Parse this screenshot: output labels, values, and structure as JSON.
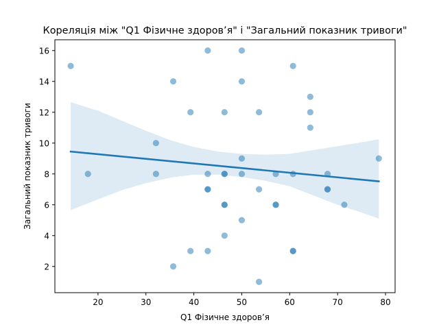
{
  "chart_data": {
    "type": "scatter",
    "title": "Кореляція між \"Q1 Фізичне здоров’я\" і \"Загальний показник тривоги\"",
    "xlabel": "Q1 Фізичне здоров’я",
    "ylabel": "Загальний показник тривоги",
    "xlim": [
      11,
      82
    ],
    "ylim": [
      0.3,
      16.7
    ],
    "xticks": [
      20,
      30,
      40,
      50,
      60,
      70,
      80
    ],
    "yticks": [
      2,
      4,
      6,
      8,
      10,
      12,
      14,
      16
    ],
    "grid": false,
    "colors": {
      "points": "#1f77b4",
      "line": "#1f77b4",
      "band": "#1f77b4"
    },
    "points": [
      {
        "x": 14.3,
        "y": 15
      },
      {
        "x": 17.9,
        "y": 8
      },
      {
        "x": 32.1,
        "y": 10
      },
      {
        "x": 32.1,
        "y": 8
      },
      {
        "x": 35.7,
        "y": 14
      },
      {
        "x": 35.7,
        "y": 2
      },
      {
        "x": 39.3,
        "y": 12
      },
      {
        "x": 39.3,
        "y": 3
      },
      {
        "x": 42.9,
        "y": 16
      },
      {
        "x": 42.9,
        "y": 8
      },
      {
        "x": 42.9,
        "y": 7
      },
      {
        "x": 42.9,
        "y": 7
      },
      {
        "x": 42.9,
        "y": 3
      },
      {
        "x": 46.4,
        "y": 12
      },
      {
        "x": 46.4,
        "y": 8
      },
      {
        "x": 46.4,
        "y": 8
      },
      {
        "x": 46.4,
        "y": 6
      },
      {
        "x": 46.4,
        "y": 6
      },
      {
        "x": 46.4,
        "y": 4
      },
      {
        "x": 50.0,
        "y": 16
      },
      {
        "x": 50.0,
        "y": 14
      },
      {
        "x": 50.0,
        "y": 9
      },
      {
        "x": 50.0,
        "y": 8
      },
      {
        "x": 50.0,
        "y": 5
      },
      {
        "x": 53.6,
        "y": 12
      },
      {
        "x": 53.6,
        "y": 7
      },
      {
        "x": 53.6,
        "y": 1
      },
      {
        "x": 57.1,
        "y": 8
      },
      {
        "x": 57.1,
        "y": 6
      },
      {
        "x": 57.1,
        "y": 6
      },
      {
        "x": 60.7,
        "y": 15
      },
      {
        "x": 60.7,
        "y": 8
      },
      {
        "x": 60.7,
        "y": 3
      },
      {
        "x": 60.7,
        "y": 3
      },
      {
        "x": 64.3,
        "y": 13
      },
      {
        "x": 64.3,
        "y": 12
      },
      {
        "x": 64.3,
        "y": 11
      },
      {
        "x": 67.9,
        "y": 8
      },
      {
        "x": 67.9,
        "y": 7
      },
      {
        "x": 67.9,
        "y": 7
      },
      {
        "x": 71.4,
        "y": 6
      },
      {
        "x": 78.6,
        "y": 9
      }
    ],
    "regression": {
      "x": [
        14.3,
        78.6
      ],
      "y": [
        9.45,
        7.52
      ]
    },
    "confidence_band": [
      {
        "x": 14.3,
        "lower": 5.65,
        "upper": 12.65
      },
      {
        "x": 20.0,
        "lower": 6.35,
        "upper": 12.1
      },
      {
        "x": 25.0,
        "lower": 6.95,
        "upper": 11.45
      },
      {
        "x": 30.0,
        "lower": 7.4,
        "upper": 10.8
      },
      {
        "x": 35.0,
        "lower": 7.75,
        "upper": 10.2
      },
      {
        "x": 40.0,
        "lower": 7.95,
        "upper": 9.75
      },
      {
        "x": 45.0,
        "lower": 7.95,
        "upper": 9.45
      },
      {
        "x": 50.0,
        "lower": 7.8,
        "upper": 9.3
      },
      {
        "x": 55.0,
        "lower": 7.55,
        "upper": 9.25
      },
      {
        "x": 60.0,
        "lower": 7.2,
        "upper": 9.3
      },
      {
        "x": 65.0,
        "lower": 6.6,
        "upper": 9.55
      },
      {
        "x": 70.0,
        "lower": 6.0,
        "upper": 9.8
      },
      {
        "x": 75.0,
        "lower": 5.5,
        "upper": 10.05
      },
      {
        "x": 78.6,
        "lower": 5.1,
        "upper": 10.25
      }
    ]
  }
}
